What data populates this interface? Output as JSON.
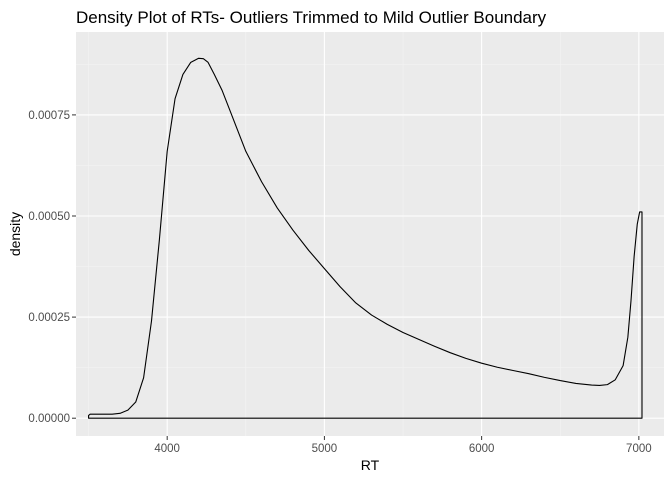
{
  "chart_data": {
    "type": "area",
    "title": "Density Plot of RTs- Outliers Trimmed to Mild Outlier Boundary",
    "xlabel": "RT",
    "ylabel": "density",
    "xlim": [
      3420,
      7160
    ],
    "ylim": [
      -4.4e-05,
      0.000955
    ],
    "x_ticks": [
      4000,
      5000,
      6000,
      7000
    ],
    "x_tick_labels": [
      "4000",
      "5000",
      "6000",
      "7000"
    ],
    "y_ticks": [
      0,
      0.00025,
      0.0005,
      0.00075
    ],
    "y_tick_labels": [
      "0.00000",
      "0.00025",
      "0.00050",
      "0.00075"
    ],
    "grid": true,
    "legend": "none",
    "colors": {
      "panel_background": "#ebebeb",
      "grid_major": "#ffffff",
      "grid_minor": "#f4f4f4",
      "line": "#000000"
    },
    "series": [
      {
        "x": [
          3500,
          3510,
          3550,
          3600,
          3650,
          3700,
          3750,
          3800,
          3850,
          3900,
          3950,
          4000,
          4050,
          4100,
          4150,
          4200,
          4230,
          4260,
          4300,
          4350,
          4400,
          4500,
          4600,
          4700,
          4800,
          4900,
          5000,
          5100,
          5200,
          5300,
          5400,
          5500,
          5600,
          5700,
          5800,
          5900,
          6000,
          6100,
          6200,
          6300,
          6400,
          6500,
          6600,
          6700,
          6750,
          6800,
          6850,
          6900,
          6930,
          6950,
          6970,
          6990,
          7005,
          7015,
          7020
        ],
        "y": [
          7e-06,
          1e-05,
          1e-05,
          1e-05,
          1e-05,
          1.2e-05,
          2e-05,
          4e-05,
          0.0001,
          0.00024,
          0.00044,
          0.00066,
          0.00079,
          0.00085,
          0.00088,
          0.00089,
          0.000889,
          0.00088,
          0.00085,
          0.00081,
          0.00076,
          0.00066,
          0.000585,
          0.00052,
          0.000465,
          0.000415,
          0.00037,
          0.000325,
          0.000285,
          0.000255,
          0.000232,
          0.000212,
          0.000195,
          0.000178,
          0.000162,
          0.000148,
          0.000136,
          0.000126,
          0.000118,
          0.00011,
          0.000101,
          9.3e-05,
          8.6e-05,
          8.2e-05,
          8.1e-05,
          8.3e-05,
          9.5e-05,
          0.00013,
          0.0002,
          0.00029,
          0.0004,
          0.00048,
          0.00051,
          0.00051,
          0.00051
        ]
      }
    ]
  }
}
